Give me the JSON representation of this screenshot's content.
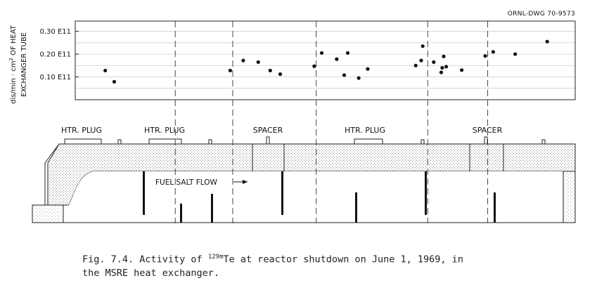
{
  "drawing_number": "ORNL-DWG 70-9573",
  "chart_data": {
    "type": "scatter",
    "ylabel_line1": "dis/min · cm",
    "ylabel_sup": "2",
    "ylabel_line1_end": " OF HEAT",
    "ylabel_line2": "EXCHANGER TUBE",
    "ylim": [
      0.0,
      0.345
    ],
    "xlim": [
      0,
      100
    ],
    "ytick_labels": [
      "0.10  E11",
      "0.20  E11",
      "0.30  E11"
    ],
    "ytick_values": [
      0.1,
      0.2,
      0.3
    ],
    "grid": true,
    "legend": "none",
    "section_boundaries_x": [
      20.0,
      31.5,
      48.2,
      70.5,
      82.5
    ],
    "points": [
      {
        "x": 6.0,
        "y": 0.128
      },
      {
        "x": 7.8,
        "y": 0.079
      },
      {
        "x": 31.0,
        "y": 0.128
      },
      {
        "x": 33.6,
        "y": 0.172
      },
      {
        "x": 36.6,
        "y": 0.165
      },
      {
        "x": 39.0,
        "y": 0.128
      },
      {
        "x": 41.0,
        "y": 0.112
      },
      {
        "x": 47.8,
        "y": 0.147
      },
      {
        "x": 49.3,
        "y": 0.205
      },
      {
        "x": 52.3,
        "y": 0.178
      },
      {
        "x": 53.8,
        "y": 0.108
      },
      {
        "x": 54.5,
        "y": 0.205
      },
      {
        "x": 56.7,
        "y": 0.095
      },
      {
        "x": 58.5,
        "y": 0.135
      },
      {
        "x": 68.1,
        "y": 0.15
      },
      {
        "x": 69.2,
        "y": 0.172
      },
      {
        "x": 69.5,
        "y": 0.235
      },
      {
        "x": 71.7,
        "y": 0.165
      },
      {
        "x": 73.2,
        "y": 0.12
      },
      {
        "x": 73.4,
        "y": 0.14
      },
      {
        "x": 73.7,
        "y": 0.19
      },
      {
        "x": 74.2,
        "y": 0.145
      },
      {
        "x": 77.3,
        "y": 0.13
      },
      {
        "x": 82.0,
        "y": 0.192
      },
      {
        "x": 83.6,
        "y": 0.21
      },
      {
        "x": 88.0,
        "y": 0.2
      },
      {
        "x": 94.4,
        "y": 0.255
      }
    ]
  },
  "diagram": {
    "region_labels": [
      "HTR. PLUG",
      "HTR. PLUG",
      "SPACER",
      "HTR. PLUG",
      "SPACER"
    ],
    "flow_label": "FUEL SALT FLOW"
  },
  "caption": {
    "prefix": "Fig. 7.4.  Activity of ",
    "isotope_mass": "129m",
    "isotope_element": "Te",
    "suffix": " at reactor shutdown on June 1, 1969, in",
    "line2": "the MSRE heat exchanger."
  }
}
